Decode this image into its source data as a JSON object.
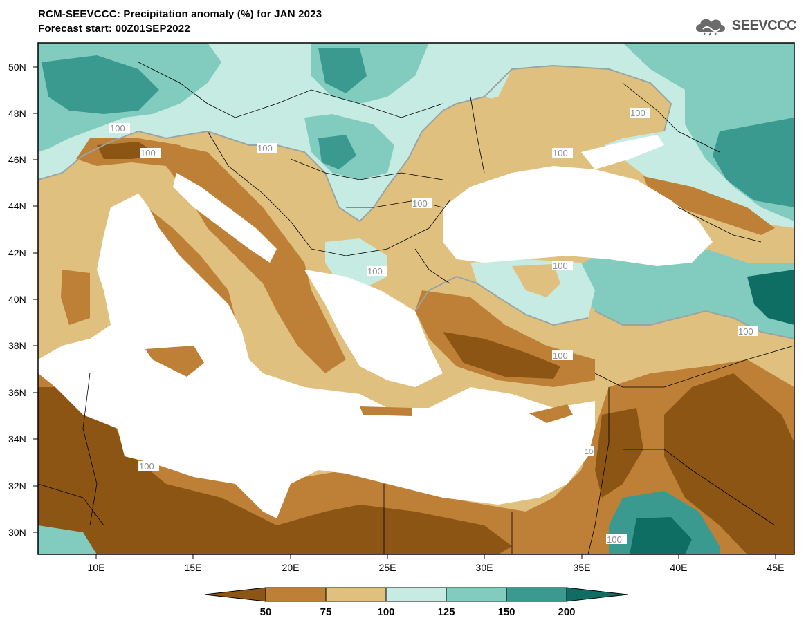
{
  "header": {
    "title": "RCM-SEEVCCC: Precipitation anomaly (%) for JAN 2023",
    "subtitle": "Forecast start: 00Z01SEP2022",
    "logo_text": "SEEVCCC"
  },
  "map": {
    "variable": "Precipitation anomaly (%)",
    "lat_ticks": [
      "50N",
      "48N",
      "46N",
      "44N",
      "42N",
      "40N",
      "38N",
      "36N",
      "34N",
      "32N",
      "30N"
    ],
    "lon_ticks": [
      "10E",
      "15E",
      "20E",
      "25E",
      "30E",
      "35E",
      "40E",
      "45E"
    ],
    "contour_labels": [
      "100",
      "100",
      "100",
      "100",
      "100",
      "100",
      "100",
      "100",
      "100",
      "100",
      "100",
      "100",
      "100"
    ]
  },
  "colorbar": {
    "thresholds": [
      "50",
      "75",
      "100",
      "125",
      "150",
      "200"
    ],
    "colors": {
      "lt50": "#8c5514",
      "50_75": "#bd8036",
      "75_100": "#dfc07e",
      "100_125": "#c6ebe3",
      "125_150": "#82cbbf",
      "150_200": "#3a9a8f",
      "gt200": "#0f6e64"
    }
  }
}
